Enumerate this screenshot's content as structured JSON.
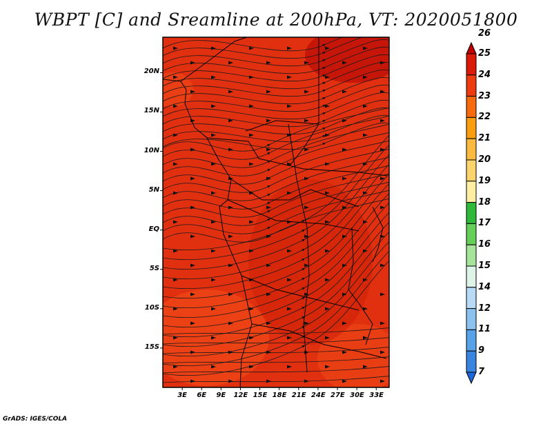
{
  "title": "WBPT [C] and Sreamline at 200hPa, VT: 2020051800",
  "footer": "GrADS: IGES/COLA",
  "lat_labels": [
    "20N",
    "15N",
    "10N",
    "5N",
    "EQ",
    "5S",
    "10S",
    "15S"
  ],
  "lat_values": [
    20,
    15,
    10,
    5,
    0,
    -5,
    -10,
    -15
  ],
  "lon_labels": [
    "3E",
    "6E",
    "9E",
    "12E",
    "15E",
    "18E",
    "21E",
    "24E",
    "27E",
    "30E",
    "33E"
  ],
  "lon_values": [
    3,
    6,
    9,
    12,
    15,
    18,
    21,
    24,
    27,
    30,
    33
  ],
  "map_extent": {
    "lon_min": 0,
    "lon_max": 35,
    "lat_min": -20,
    "lat_max": 24.5
  },
  "colorbar": {
    "labels": [
      "26",
      "25",
      "24",
      "23",
      "22",
      "21",
      "20",
      "19",
      "18",
      "17",
      "16",
      "15",
      "14",
      "12",
      "11",
      "9",
      "7"
    ],
    "colors": [
      "#c00000",
      "#dc1a0a",
      "#ee3c10",
      "#f86a0e",
      "#fa9d10",
      "#fbbb40",
      "#fcd46e",
      "#fdeea4",
      "#2fb83a",
      "#66cf5a",
      "#a6e49a",
      "#def4e8",
      "#b8daf6",
      "#8cc2f0",
      "#5aa2e8",
      "#3884e0",
      "#1e66d8"
    ]
  },
  "field_colors": {
    "base": "#e03010",
    "warm": "#d02008",
    "cool": "#f04818",
    "hot": "#c01208"
  }
}
